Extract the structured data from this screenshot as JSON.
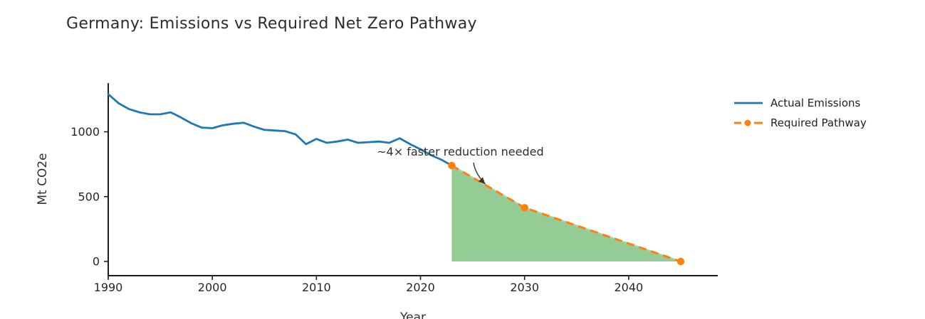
{
  "page": {
    "background": "#ffffff"
  },
  "chart_data": {
    "type": "line",
    "title": "Germany: Emissions vs Required Net Zero Pathway",
    "xlabel": "Year",
    "ylabel": "Mt CO2e",
    "x_axis": {
      "ticks": [
        1990,
        2000,
        2010,
        2020,
        2030,
        2040
      ],
      "range": [
        1990,
        2048.5
      ],
      "grid": false
    },
    "y_axis": {
      "ticks": [
        0,
        500,
        1000
      ],
      "range": [
        -110,
        1370
      ],
      "grid": false
    },
    "axis_color": "#1c1c1c",
    "tick_label_color": "#262626",
    "legend": {
      "position": "outside-right-top",
      "entries": [
        "Actual Emissions",
        "Required Pathway"
      ]
    },
    "series": [
      {
        "name": "Actual Emissions",
        "type": "line",
        "style": "solid",
        "color": "#1f77b4",
        "x": [
          1990,
          1991,
          1992,
          1993,
          1994,
          1995,
          1996,
          1997,
          1998,
          1999,
          2000,
          2001,
          2002,
          2003,
          2004,
          2005,
          2006,
          2007,
          2008,
          2009,
          2010,
          2011,
          2012,
          2013,
          2014,
          2015,
          2016,
          2017,
          2018,
          2019,
          2020,
          2021,
          2022,
          2023
        ],
        "values": [
          1290,
          1220,
          1175,
          1150,
          1135,
          1135,
          1150,
          1110,
          1065,
          1032,
          1028,
          1050,
          1062,
          1070,
          1040,
          1015,
          1010,
          1005,
          980,
          905,
          945,
          915,
          925,
          940,
          915,
          920,
          925,
          915,
          950,
          905,
          865,
          820,
          785,
          740
        ]
      },
      {
        "name": "Required Pathway",
        "type": "line",
        "style": "dashed",
        "markers": "circle",
        "color": "#ff7f0e",
        "x": [
          2023,
          2030,
          2045
        ],
        "values": [
          740,
          415,
          0
        ]
      }
    ],
    "gap_fill": {
      "color": "#95cb95",
      "edge_color": "#a9d6a9",
      "between": "Required Pathway and zero line",
      "x_range": [
        2023,
        2045
      ]
    },
    "annotation": {
      "text": "~4× faster reduction needed",
      "text_pos": [
        2015.8,
        830
      ],
      "arrow_from": [
        2025.1,
        762
      ],
      "arrow_to": [
        2026.2,
        598
      ],
      "color": "#333333"
    }
  }
}
